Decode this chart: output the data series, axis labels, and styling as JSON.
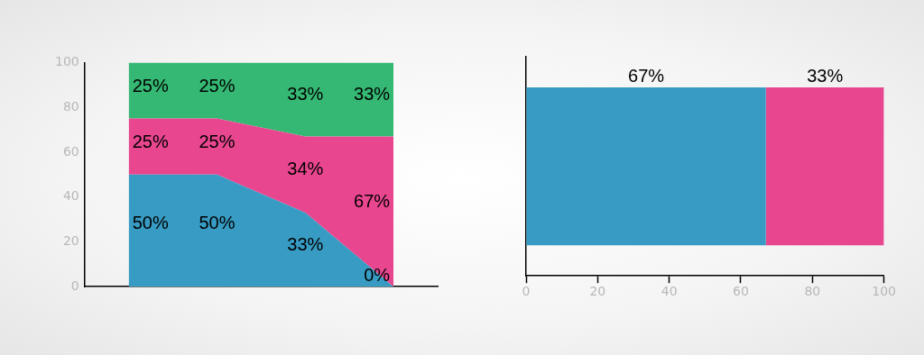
{
  "chart_data": [
    {
      "type": "area",
      "stacked": true,
      "grid": false,
      "categories": [
        null,
        null,
        null,
        null
      ],
      "ylim": [
        0,
        100
      ],
      "yticks": [
        0,
        20,
        40,
        60,
        80,
        100
      ],
      "series": [
        {
          "color": "#379bc3",
          "values": [
            50,
            50,
            33,
            0
          ],
          "value_labels": [
            "50%",
            "50%",
            "33%",
            "0%"
          ]
        },
        {
          "color": "#e8468f",
          "values": [
            25,
            25,
            34,
            67
          ],
          "value_labels": [
            "25%",
            "25%",
            "34%",
            "67%"
          ]
        },
        {
          "color": "#35b873",
          "values": [
            25,
            25,
            33,
            33
          ],
          "value_labels": [
            "25%",
            "25%",
            "33%",
            "33%"
          ]
        }
      ]
    },
    {
      "type": "bar",
      "orientation": "horizontal",
      "stacked": true,
      "grid": false,
      "categories": [
        null
      ],
      "xlim": [
        0,
        100
      ],
      "xticks": [
        0,
        20,
        40,
        60,
        80,
        100
      ],
      "tick_labels": "x",
      "series": [
        {
          "color": "#379bc3",
          "values": [
            67
          ],
          "value_labels": [
            "67%"
          ]
        },
        {
          "color": "#e8468f",
          "values": [
            33
          ],
          "value_labels": [
            "33%"
          ]
        }
      ]
    }
  ]
}
